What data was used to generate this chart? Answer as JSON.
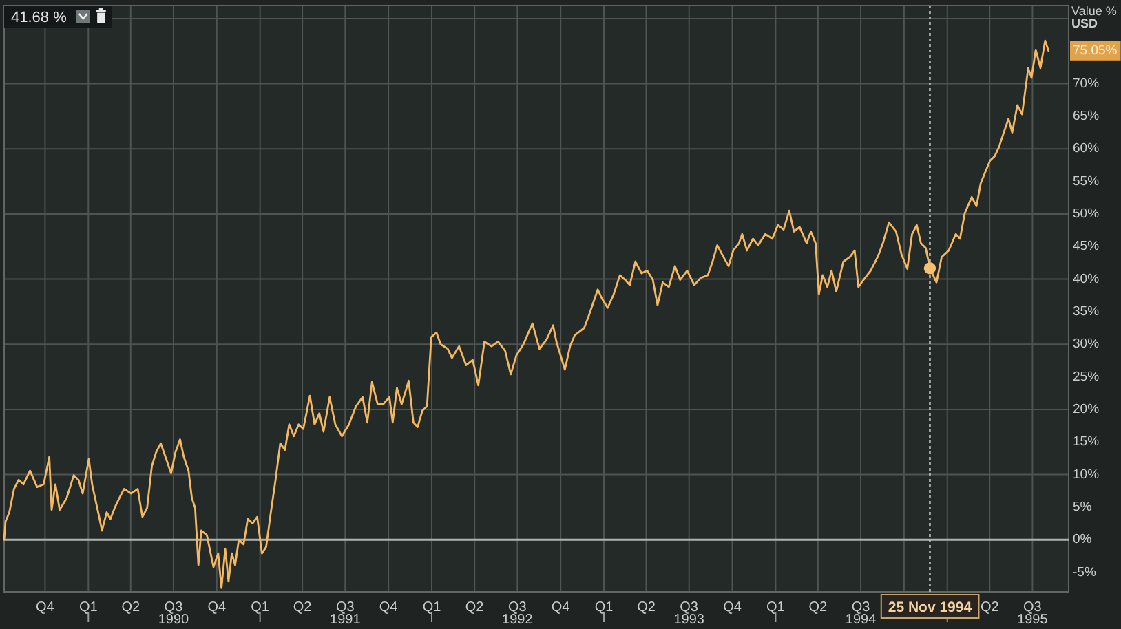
{
  "chart_data": {
    "type": "line",
    "ylabel": "Value %\nUSD",
    "xlim": [
      "1989-07-06",
      "1995-09-16"
    ],
    "ylim": [
      -8,
      82
    ],
    "grid": true,
    "xticks": [
      {
        "value": "1989-10-01",
        "label": "Q4"
      },
      {
        "value": "1990-01-01",
        "label": "Q1"
      },
      {
        "value": "1990-04-01",
        "label": "Q2"
      },
      {
        "value": "1990-07-01",
        "label": "Q3\n1990"
      },
      {
        "value": "1990-10-01",
        "label": "Q4"
      },
      {
        "value": "1991-01-01",
        "label": "Q1"
      },
      {
        "value": "1991-04-01",
        "label": "Q2"
      },
      {
        "value": "1991-07-01",
        "label": "Q3\n1991"
      },
      {
        "value": "1991-10-01",
        "label": "Q4"
      },
      {
        "value": "1992-01-01",
        "label": "Q1"
      },
      {
        "value": "1992-04-01",
        "label": "Q2"
      },
      {
        "value": "1992-07-01",
        "label": "Q3\n1992"
      },
      {
        "value": "1992-10-01",
        "label": "Q4"
      },
      {
        "value": "1993-01-01",
        "label": "Q1"
      },
      {
        "value": "1993-04-01",
        "label": "Q2"
      },
      {
        "value": "1993-07-01",
        "label": "Q3\n1993"
      },
      {
        "value": "1993-10-01",
        "label": "Q4"
      },
      {
        "value": "1994-01-01",
        "label": "Q1"
      },
      {
        "value": "1994-04-01",
        "label": "Q2"
      },
      {
        "value": "1994-07-01",
        "label": "Q3\n1994"
      },
      {
        "value": "1994-10-01",
        "label": null
      },
      {
        "value": "1995-01-01",
        "label": null
      },
      {
        "value": "1995-04-01",
        "label": "Q2"
      },
      {
        "value": "1995-07-01",
        "label": "Q3\n1995"
      }
    ],
    "yticks": [
      {
        "value": -5,
        "label": "-5%"
      },
      {
        "value": 0,
        "label": "0%"
      },
      {
        "value": 5,
        "label": "5%"
      },
      {
        "value": 10,
        "label": "10%"
      },
      {
        "value": 15,
        "label": "15%"
      },
      {
        "value": 20,
        "label": "20%"
      },
      {
        "value": 25,
        "label": "25%"
      },
      {
        "value": 30,
        "label": "30%"
      },
      {
        "value": 35,
        "label": "35%"
      },
      {
        "value": 40,
        "label": "40%"
      },
      {
        "value": 45,
        "label": "45%"
      },
      {
        "value": 50,
        "label": "50%"
      },
      {
        "value": 55,
        "label": "55%"
      },
      {
        "value": 60,
        "label": "60%"
      },
      {
        "value": 65,
        "label": "65%"
      },
      {
        "value": 70,
        "label": "70%"
      },
      {
        "value": 80,
        "label": null
      }
    ],
    "series": [
      {
        "type": "line",
        "color": "#f5b862",
        "x": [
          "1989-07-06",
          "1989-07-09",
          "1989-07-17",
          "1989-07-27",
          "1989-08-06",
          "1989-08-16",
          "1989-08-30",
          "1989-09-14",
          "1989-09-28",
          "1989-10-10",
          "1989-10-15",
          "1989-10-23",
          "1989-11-01",
          "1989-11-16",
          "1989-12-01",
          "1989-12-11",
          "1989-12-20",
          "1990-01-02",
          "1990-01-09",
          "1990-01-24",
          "1990-01-30",
          "1990-02-09",
          "1990-02-17",
          "1990-02-26",
          "1990-03-08",
          "1990-03-18",
          "1990-04-02",
          "1990-04-16",
          "1990-04-26",
          "1990-05-06",
          "1990-05-16",
          "1990-05-25",
          "1990-06-04",
          "1990-06-14",
          "1990-06-26",
          "1990-07-05",
          "1990-07-15",
          "1990-07-23",
          "1990-08-02",
          "1990-08-09",
          "1990-08-16",
          "1990-08-23",
          "1990-08-29",
          "1990-09-10",
          "1990-09-18",
          "1990-09-24",
          "1990-10-04",
          "1990-10-11",
          "1990-10-19",
          "1990-10-26",
          "1990-11-02",
          "1990-11-09",
          "1990-11-17",
          "1990-11-27",
          "1990-12-06",
          "1990-12-16",
          "1990-12-26",
          "1991-01-05",
          "1991-01-14",
          "1991-01-24",
          "1991-02-03",
          "1991-02-13",
          "1991-02-23",
          "1991-03-04",
          "1991-03-14",
          "1991-03-24",
          "1991-04-03",
          "1991-04-17",
          "1991-04-27",
          "1991-05-07",
          "1991-05-16",
          "1991-05-29",
          "1991-06-10",
          "1991-06-24",
          "1991-07-09",
          "1991-07-24",
          "1991-08-07",
          "1991-08-17",
          "1991-08-27",
          "1991-09-08",
          "1991-09-20",
          "1991-10-03",
          "1991-10-10",
          "1991-10-19",
          "1991-10-29",
          "1991-11-13",
          "1991-11-23",
          "1991-12-02",
          "1991-12-12",
          "1991-12-22",
          "1991-12-31",
          "1992-01-11",
          "1992-01-20",
          "1992-02-04",
          "1992-02-13",
          "1992-02-28",
          "1992-03-14",
          "1992-03-28",
          "1992-04-09",
          "1992-04-22",
          "1992-05-07",
          "1992-05-21",
          "1992-06-05",
          "1992-06-17",
          "1992-06-29",
          "1992-07-14",
          "1992-08-02",
          "1992-08-17",
          "1992-09-01",
          "1992-09-15",
          "1992-09-22",
          "1992-10-10",
          "1992-10-21",
          "1992-10-31",
          "1992-11-20",
          "1992-11-29",
          "1992-12-19",
          "1992-12-28",
          "1993-01-09",
          "1993-01-22",
          "1993-02-04",
          "1993-02-15",
          "1993-02-25",
          "1993-03-09",
          "1993-03-22",
          "1993-04-03",
          "1993-04-15",
          "1993-04-25",
          "1993-05-06",
          "1993-05-19",
          "1993-06-01",
          "1993-06-12",
          "1993-06-27",
          "1993-07-12",
          "1993-07-26",
          "1993-08-10",
          "1993-08-20",
          "1993-08-30",
          "1993-09-10",
          "1993-09-23",
          "1993-10-03",
          "1993-10-15",
          "1993-10-22",
          "1993-11-01",
          "1993-11-14",
          "1993-11-25",
          "1993-12-10",
          "1993-12-25",
          "1994-01-06",
          "1994-01-18",
          "1994-01-30",
          "1994-02-09",
          "1994-02-21",
          "1994-03-08",
          "1994-03-17",
          "1994-03-27",
          "1994-04-03",
          "1994-04-11",
          "1994-04-21",
          "1994-04-30",
          "1994-05-10",
          "1994-05-25",
          "1994-06-08",
          "1994-06-18",
          "1994-06-26",
          "1994-07-07",
          "1994-07-22",
          "1994-08-06",
          "1994-08-17",
          "1994-08-30",
          "1994-09-14",
          "1994-09-26",
          "1994-10-08",
          "1994-10-18",
          "1994-10-28",
          "1994-11-06",
          "1994-11-16",
          "1994-11-25",
          "1994-12-09",
          "1994-12-20",
          "1995-01-04",
          "1995-01-19",
          "1995-01-28",
          "1995-02-07",
          "1995-02-22",
          "1995-03-04",
          "1995-03-13",
          "1995-03-23",
          "1995-04-02",
          "1995-04-12",
          "1995-04-21",
          "1995-05-01",
          "1995-05-11",
          "1995-05-19",
          "1995-05-30",
          "1995-06-09",
          "1995-06-22",
          "1995-06-29",
          "1995-07-08",
          "1995-07-18",
          "1995-07-28",
          "1995-08-04"
        ],
        "values": [
          0,
          2.8,
          4.2,
          7.8,
          9.2,
          8.5,
          10.6,
          8.1,
          8.5,
          12.7,
          4.6,
          8.5,
          4.6,
          6.4,
          9.9,
          9.2,
          7.1,
          12.4,
          8.5,
          3.5,
          1.4,
          4.2,
          3.2,
          4.9,
          6.4,
          7.8,
          7.1,
          7.8,
          3.5,
          4.9,
          11.3,
          13.4,
          14.8,
          12.7,
          10.2,
          13.4,
          15.4,
          12.7,
          10.6,
          6.4,
          4.9,
          -3.9,
          1.4,
          0.7,
          -2.1,
          -4.2,
          -2.1,
          -7.4,
          -1.4,
          -6.4,
          -2.1,
          -3.9,
          0,
          -0.7,
          3.2,
          2.5,
          3.5,
          -2.1,
          -1.1,
          4.2,
          9.2,
          14.8,
          13.8,
          17.7,
          15.9,
          17.7,
          17.0,
          22.1,
          17.7,
          19.4,
          16.6,
          21.9,
          17.7,
          15.9,
          17.7,
          20.5,
          21.9,
          18.0,
          24.2,
          20.8,
          20.8,
          21.9,
          18.0,
          23.3,
          20.8,
          24.4,
          18.0,
          17.3,
          19.8,
          20.5,
          31.1,
          31.8,
          30.0,
          29.3,
          27.9,
          29.7,
          26.8,
          27.6,
          23.7,
          30.4,
          29.7,
          30.4,
          29.0,
          25.4,
          28.3,
          30.0,
          33.2,
          29.3,
          30.7,
          32.9,
          30.4,
          26.1,
          29.7,
          31.4,
          32.5,
          34.2,
          38.4,
          37.0,
          35.6,
          37.7,
          40.6,
          39.9,
          39.1,
          42.7,
          40.9,
          41.3,
          39.9,
          36.0,
          39.5,
          38.8,
          42.0,
          39.9,
          41.3,
          39.1,
          40.2,
          40.6,
          42.7,
          45.2,
          43.7,
          42.0,
          44.4,
          45.5,
          46.9,
          44.4,
          46.2,
          45.2,
          46.9,
          46.2,
          48.3,
          47.6,
          50.5,
          47.3,
          48.0,
          45.5,
          47.3,
          45.5,
          37.7,
          40.6,
          38.8,
          41.3,
          38.1,
          42.7,
          43.4,
          44.4,
          38.8,
          39.9,
          41.3,
          43.4,
          45.5,
          48.7,
          47.3,
          43.7,
          41.6,
          46.9,
          48.3,
          45.5,
          44.8,
          41.68,
          39.5,
          43.4,
          44.4,
          46.9,
          46.2,
          50.1,
          52.6,
          51.2,
          54.7,
          56.5,
          58.2,
          58.9,
          60.3,
          62.5,
          64.6,
          62.5,
          66.7,
          65.3,
          72.4,
          70.9,
          75.2,
          72.4,
          76.6,
          75.05
        ]
      },
      {
        "type": "scatter",
        "color": "#f5c070",
        "marker": "circle",
        "x": [
          "1994-11-25"
        ],
        "values": [
          41.68
        ]
      }
    ],
    "ref_lines": [
      {
        "axis": "y",
        "value": 0,
        "color": "#aeb3b1"
      },
      {
        "axis": "x",
        "value": "1994-11-25",
        "label": "25 Nov 1994",
        "line_style": "dotted",
        "color": "#cfd2d0"
      }
    ],
    "annotations": [
      "41.68 %",
      {
        "text": "75.05%",
        "x": "1995-08-04",
        "y": 75.05
      }
    ]
  }
}
